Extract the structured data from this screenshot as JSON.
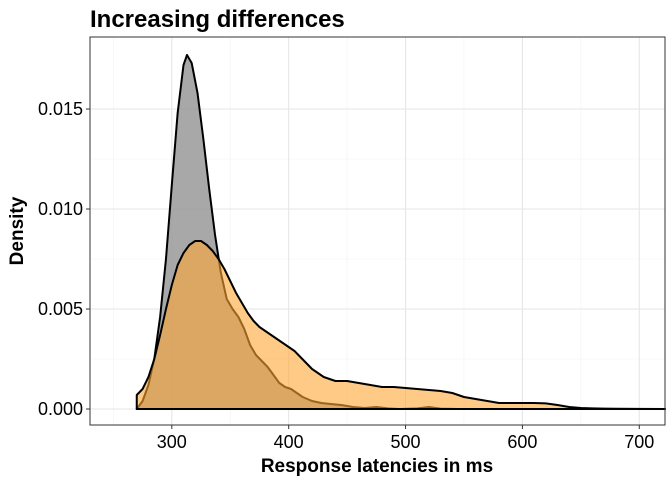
{
  "chart_data": {
    "type": "area",
    "title": "Increasing differences",
    "xlabel": "Response latencies in ms",
    "ylabel": "Density",
    "xlim": [
      230,
      722
    ],
    "ylim": [
      -0.0008,
      0.0186
    ],
    "x_ticks": [
      300,
      400,
      500,
      600,
      700
    ],
    "y_ticks": [
      0.0,
      0.005,
      0.01,
      0.015
    ],
    "x_tick_labels": [
      "300",
      "400",
      "500",
      "600",
      "700"
    ],
    "y_tick_labels": [
      "0.000",
      "0.005",
      "0.010",
      "0.015"
    ],
    "grid": true,
    "legend": "none",
    "series": [
      {
        "fill": "#999999",
        "fill_opacity": 0.85,
        "stroke": "#000000",
        "points": [
          [
            270,
            0.0
          ],
          [
            275,
            0.0004
          ],
          [
            280,
            0.0012
          ],
          [
            285,
            0.0025
          ],
          [
            290,
            0.0046
          ],
          [
            295,
            0.0075
          ],
          [
            300,
            0.0112
          ],
          [
            305,
            0.0148
          ],
          [
            310,
            0.0172
          ],
          [
            313,
            0.0177
          ],
          [
            317,
            0.0173
          ],
          [
            322,
            0.0158
          ],
          [
            327,
            0.0135
          ],
          [
            332,
            0.011
          ],
          [
            337,
            0.0087
          ],
          [
            342,
            0.0068
          ],
          [
            347,
            0.0055
          ],
          [
            352,
            0.005
          ],
          [
            357,
            0.0046
          ],
          [
            362,
            0.004
          ],
          [
            367,
            0.0032
          ],
          [
            372,
            0.0027
          ],
          [
            377,
            0.0024
          ],
          [
            382,
            0.0021
          ],
          [
            387,
            0.0017
          ],
          [
            392,
            0.0013
          ],
          [
            397,
            0.0011
          ],
          [
            402,
            0.001
          ],
          [
            407,
            0.0008
          ],
          [
            412,
            0.0006
          ],
          [
            420,
            0.0004
          ],
          [
            428,
            0.0003
          ],
          [
            436,
            0.00025
          ],
          [
            445,
            0.0002
          ],
          [
            455,
            0.0001
          ],
          [
            465,
            5e-05
          ],
          [
            475,
            0.0001
          ],
          [
            485,
            3e-05
          ],
          [
            495,
            0.0
          ],
          [
            510,
            3e-05
          ],
          [
            520,
            0.0001
          ],
          [
            530,
            2e-05
          ],
          [
            545,
            0.0
          ],
          [
            560,
            0.0
          ],
          [
            722,
            0.0
          ]
        ]
      },
      {
        "fill": "#ffa733",
        "fill_opacity": 0.6,
        "stroke": "#000000",
        "points": [
          [
            270,
            0.0007
          ],
          [
            275,
            0.001
          ],
          [
            280,
            0.0016
          ],
          [
            285,
            0.0025
          ],
          [
            290,
            0.0037
          ],
          [
            295,
            0.005
          ],
          [
            300,
            0.0062
          ],
          [
            305,
            0.0072
          ],
          [
            310,
            0.0078
          ],
          [
            315,
            0.0082
          ],
          [
            320,
            0.0084
          ],
          [
            325,
            0.0084
          ],
          [
            330,
            0.0082
          ],
          [
            335,
            0.0079
          ],
          [
            340,
            0.0075
          ],
          [
            345,
            0.007
          ],
          [
            350,
            0.0064
          ],
          [
            355,
            0.0058
          ],
          [
            360,
            0.0053
          ],
          [
            365,
            0.0048
          ],
          [
            370,
            0.0044
          ],
          [
            375,
            0.0041
          ],
          [
            380,
            0.0039
          ],
          [
            385,
            0.0037
          ],
          [
            390,
            0.0035
          ],
          [
            395,
            0.0033
          ],
          [
            400,
            0.0031
          ],
          [
            405,
            0.0029
          ],
          [
            410,
            0.0026
          ],
          [
            415,
            0.0023
          ],
          [
            420,
            0.002
          ],
          [
            425,
            0.0018
          ],
          [
            430,
            0.0016
          ],
          [
            435,
            0.0015
          ],
          [
            440,
            0.0014
          ],
          [
            450,
            0.0014
          ],
          [
            460,
            0.0013
          ],
          [
            470,
            0.0012
          ],
          [
            480,
            0.0011
          ],
          [
            490,
            0.0011
          ],
          [
            500,
            0.00105
          ],
          [
            510,
            0.001
          ],
          [
            520,
            0.00095
          ],
          [
            530,
            0.0009
          ],
          [
            540,
            0.0008
          ],
          [
            550,
            0.0006
          ],
          [
            560,
            0.0005
          ],
          [
            570,
            0.0004
          ],
          [
            580,
            0.0003
          ],
          [
            590,
            0.0003
          ],
          [
            600,
            0.0003
          ],
          [
            610,
            0.0003
          ],
          [
            620,
            0.00028
          ],
          [
            630,
            0.0002
          ],
          [
            640,
            0.0001
          ],
          [
            650,
            5e-05
          ],
          [
            660,
            3e-05
          ],
          [
            670,
            2e-05
          ],
          [
            680,
            1e-05
          ],
          [
            722,
            0.0
          ]
        ]
      }
    ]
  }
}
